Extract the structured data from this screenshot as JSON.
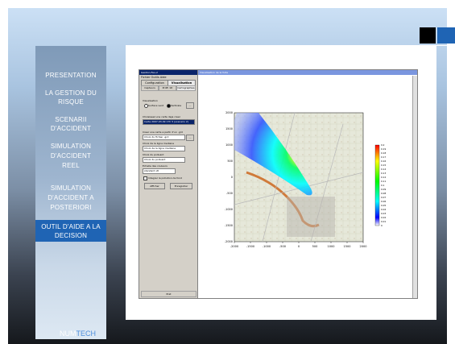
{
  "sidebar": {
    "items": [
      {
        "label": "PRESENTATION"
      },
      {
        "label": "LA GESTION DU RISQUE"
      },
      {
        "label": "SCENARII D'ACCIDENT"
      },
      {
        "label": "SIMULATION D'ACCIDENT REEL"
      },
      {
        "label": "SIMULATION D'ACCIDENT A POSTERIORI"
      },
      {
        "label": "OUTIL D'AIDE A LA DECISION",
        "active": true
      }
    ],
    "brand": {
      "part1": "NUM",
      "part2": "TECH"
    }
  },
  "app": {
    "title": "Gestion-Feu-2",
    "menu": "Fichier  Outils  Aide",
    "tabs": [
      "Configuration",
      "Visualisation"
    ],
    "subtabs": [
      "Capteurs",
      "Profil 1D",
      "Cartographies"
    ],
    "visualisation_label": "Visualisation",
    "radio_surface": "Surface vent",
    "radio_verticale": "Verticale",
    "carte_label": "Choisissez une carte deja creer",
    "carte_value": "Carte 2007-03-09 17h 5 (scenario 2)",
    "new_carte_label": "Creer une carte a partir d'un .grd",
    "fichier_grd": "Choix du fichier .grd",
    "ligne_label": "Choix de la ligne mediane",
    "ligne_value": "Choix de la ligne mediane",
    "polluant_label": "Choix du polluant",
    "polluant_value": "Choix du polluant",
    "echelle_label": "Echelle des couleurs",
    "echelle_value": "standard v8",
    "integrer_label": "Integrer la pollution de fond",
    "afficher_btn": "Afficher",
    "enregistrer_btn": "Enregistrer",
    "status": "Pret",
    "map_title": "Visualisation de la fuite"
  },
  "chart_data": {
    "type": "heatmap",
    "x_ticks": [
      "-2000",
      "-1500",
      "-1000",
      "-500",
      "0",
      "500",
      "1000",
      "1500",
      "2000"
    ],
    "y_ticks": [
      "2000",
      "1500",
      "1000",
      "500",
      "0",
      "-500",
      "-1000",
      "-1500",
      "-2000"
    ],
    "colorbar_ticks": [
      "0.2",
      "0.19",
      "0.18",
      "0.17",
      "0.16",
      "0.15",
      "0.14",
      "0.13",
      "0.12",
      "0.11",
      "0.1",
      "0.09",
      "0.08",
      "0.07",
      "0.06",
      "0.05",
      "0.04",
      "0.03",
      "0.02",
      "0.01",
      "0"
    ],
    "xlim": [
      -2000,
      2000
    ],
    "ylim": [
      -2000,
      2000
    ],
    "colorscale": [
      "#ffffff",
      "#0000ff",
      "#00ffff",
      "#00ff00",
      "#ffff00",
      "#ff0000"
    ]
  }
}
